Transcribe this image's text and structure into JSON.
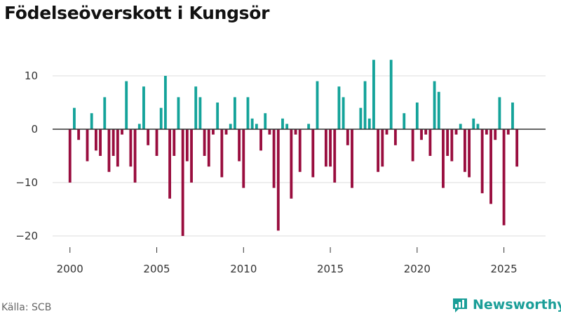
{
  "header": {
    "title": "Födelseöverskott i Kungsör"
  },
  "footer": {
    "source": "Källa: SCB",
    "brand": "Newsworthy"
  },
  "colors": {
    "positive": "#14a39a",
    "negative": "#990d3e",
    "grid": "#dddddd",
    "zero_line": "#333333"
  },
  "chart_data": {
    "type": "bar",
    "title": "Födelseöverskott i Kungsör",
    "xlabel": "",
    "ylabel": "",
    "xlim": [
      1999.0,
      2027.4
    ],
    "ylim": [
      -20,
      15
    ],
    "yticks": [
      -20,
      -10,
      0,
      10
    ],
    "ytick_labels": [
      "−20",
      "−10",
      "0",
      "10"
    ],
    "xticks": [
      2000,
      2005,
      2010,
      2015,
      2020,
      2025
    ],
    "xtick_labels": [
      "2000",
      "2005",
      "2010",
      "2015",
      "2020",
      "2025"
    ],
    "frequency": "quarterly",
    "start": 2000.0,
    "step": 0.25,
    "values": [
      -10,
      4,
      -2,
      0,
      -6,
      3,
      -4,
      -5,
      6,
      -8,
      -5,
      -7,
      -1,
      9,
      -7,
      -10,
      1,
      8,
      -3,
      0,
      -5,
      4,
      10,
      -13,
      -5,
      6,
      -20,
      -6,
      -10,
      8,
      6,
      -5,
      -7,
      -1,
      5,
      -9,
      -1,
      1,
      6,
      -6,
      -11,
      6,
      2,
      1,
      -4,
      3,
      -1,
      -11,
      -19,
      2,
      1,
      -13,
      -1,
      -8,
      0,
      1,
      -9,
      9,
      0,
      -7,
      -7,
      -10,
      8,
      6,
      -3,
      -11,
      0,
      4,
      9,
      2,
      13,
      -8,
      -7,
      -1,
      13,
      -3,
      0,
      3,
      0,
      -6,
      5,
      -2,
      -1,
      -5,
      9,
      7,
      -11,
      -5,
      -6,
      -1,
      1,
      -8,
      -9,
      2,
      1,
      -12,
      -1,
      -14,
      -2,
      6,
      -18,
      -1,
      5,
      -7
    ]
  }
}
